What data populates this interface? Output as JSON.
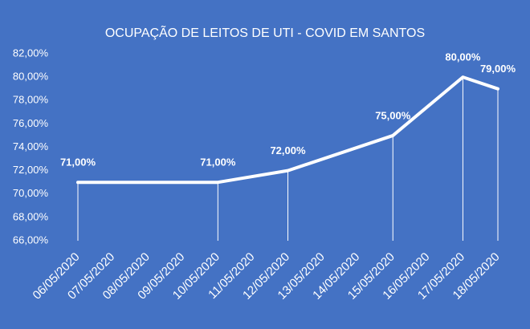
{
  "chart_data": {
    "type": "line",
    "title": "OCUPAÇÃO DE LEITOS DE UTI - COVID EM SANTOS",
    "x": [
      "06/05/2020",
      "10/05/2020",
      "12/05/2020",
      "15/05/2020",
      "17/05/2020",
      "18/05/2020"
    ],
    "values": [
      71,
      71,
      72,
      75,
      80,
      79
    ],
    "value_labels": [
      "71,00%",
      "71,00%",
      "72,00%",
      "75,00%",
      "80,00%",
      "79,00%"
    ],
    "color": "#ffffff",
    "ylim": [
      66,
      82
    ],
    "yticks": [
      {
        "value": 66,
        "label": "66,00%"
      },
      {
        "value": 68,
        "label": "68,00%"
      },
      {
        "value": 70,
        "label": "70,00%"
      },
      {
        "value": 72,
        "label": "72,00%"
      },
      {
        "value": 74,
        "label": "74,00%"
      },
      {
        "value": 76,
        "label": "76,00%"
      },
      {
        "value": 78,
        "label": "78,00%"
      },
      {
        "value": 80,
        "label": "80,00%"
      },
      {
        "value": 82,
        "label": "82,00%"
      }
    ],
    "xticks": [
      "06/05/2020",
      "07/05/2020",
      "08/05/2020",
      "09/05/2020",
      "10/05/2020",
      "11/05/2020",
      "12/05/2020",
      "13/05/2020",
      "14/05/2020",
      "15/05/2020",
      "16/05/2020",
      "17/05/2020",
      "18/05/2020"
    ]
  }
}
